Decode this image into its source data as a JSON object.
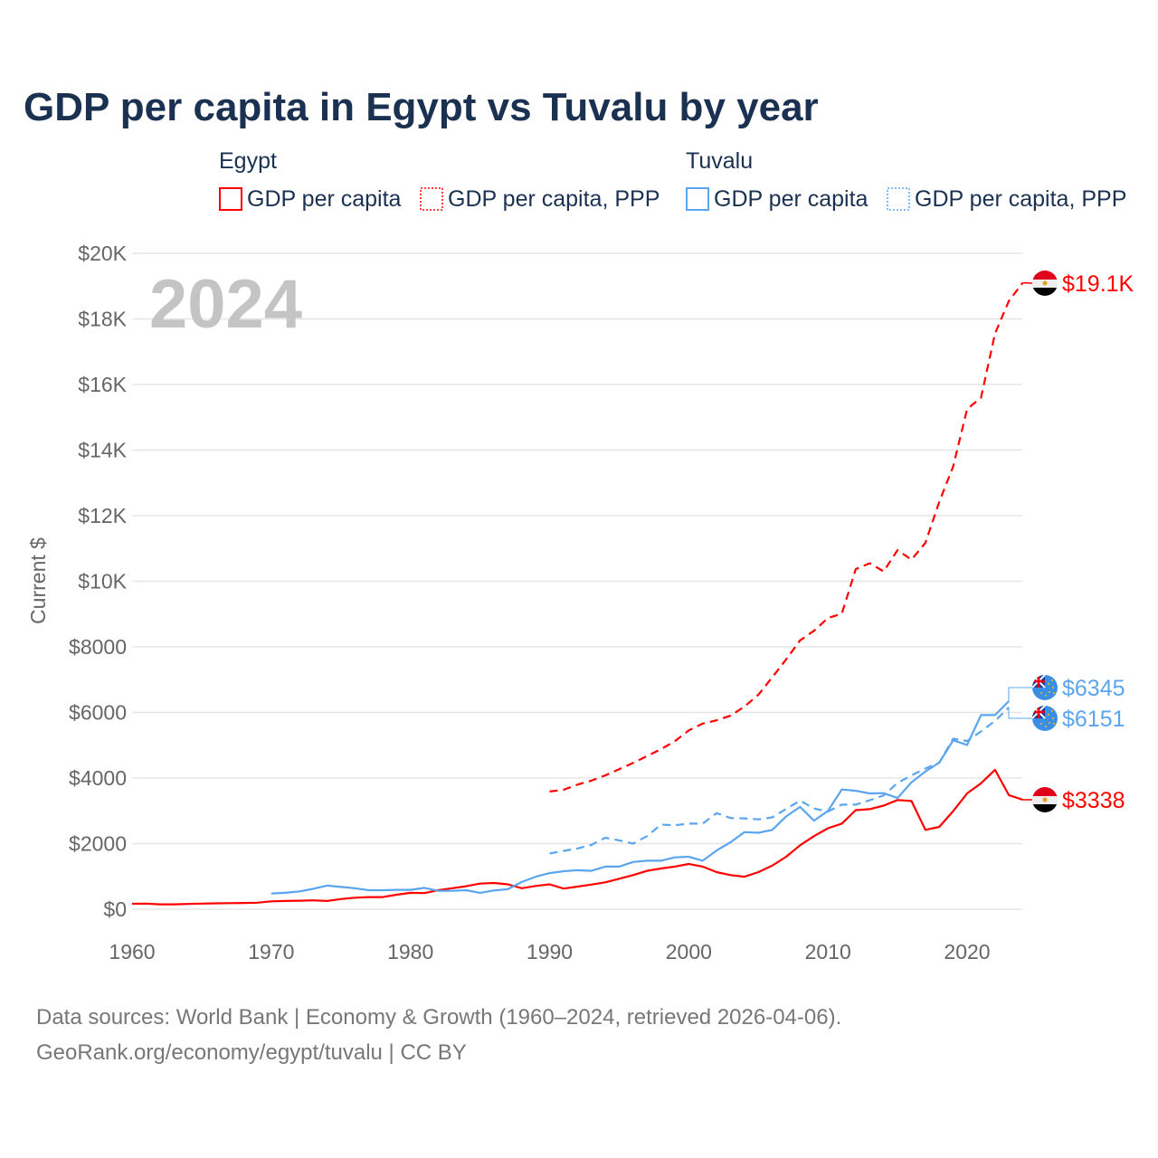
{
  "chart_data": {
    "type": "line",
    "title": "GDP per capita in Egypt vs Tuvalu by year",
    "xlabel": "",
    "ylabel": "Current $",
    "xlim": [
      1960,
      2024
    ],
    "ylim": [
      0,
      20000
    ],
    "x_ticks": [
      1960,
      1970,
      1980,
      1990,
      2000,
      2010,
      2020
    ],
    "x_tick_labels": [
      "1960",
      "1970",
      "1980",
      "1990",
      "2000",
      "2010",
      "2020"
    ],
    "y_ticks": [
      0,
      2000,
      4000,
      6000,
      8000,
      10000,
      12000,
      14000,
      16000,
      18000,
      20000
    ],
    "y_tick_labels": [
      "$0",
      "$2000",
      "$4000",
      "$6000",
      "$8000",
      "$10K",
      "$12K",
      "$14K",
      "$16K",
      "$18K",
      "$20K"
    ],
    "grid": true,
    "current_year_label": "2024",
    "legend_placement": "top",
    "legend_groups": [
      {
        "name": "Egypt",
        "items": [
          "GDP per capita",
          "GDP per capita, PPP"
        ]
      },
      {
        "name": "Tuvalu",
        "items": [
          "GDP per capita",
          "GDP per capita, PPP"
        ]
      }
    ],
    "series": [
      {
        "name": "Egypt GDP per capita",
        "country": "Egypt",
        "color": "#ff0000",
        "dash": false,
        "start": 1960,
        "end_label": "$3338",
        "values": [
          165,
          170,
          150,
          150,
          160,
          170,
          180,
          185,
          190,
          200,
          240,
          250,
          260,
          270,
          250,
          310,
          350,
          370,
          370,
          440,
          500,
          490,
          580,
          640,
          700,
          780,
          800,
          760,
          640,
          710,
          760,
          630,
          690,
          750,
          820,
          930,
          1040,
          1170,
          1240,
          1300,
          1380,
          1300,
          1130,
          1040,
          990,
          1130,
          1330,
          1600,
          1950,
          2230,
          2470,
          2610,
          3020,
          3050,
          3160,
          3330,
          3300,
          2420,
          2510,
          2990,
          3530,
          3840,
          4250,
          3480,
          3338
        ]
      },
      {
        "name": "Egypt GDP per capita, PPP",
        "country": "Egypt",
        "color": "#ff0000",
        "dash": true,
        "start": 1990,
        "end_label": "$19.1K",
        "values": [
          3590,
          3640,
          3800,
          3920,
          4080,
          4270,
          4460,
          4670,
          4880,
          5120,
          5450,
          5660,
          5760,
          5900,
          6180,
          6540,
          7070,
          7620,
          8200,
          8490,
          8880,
          9010,
          10370,
          10550,
          10300,
          10950,
          10660,
          11170,
          12420,
          13500,
          15250,
          15600,
          17550,
          18550,
          19100
        ]
      },
      {
        "name": "Tuvalu GDP per capita",
        "country": "Tuvalu",
        "color": "#5aa5ee",
        "dash": false,
        "start": 1970,
        "end_label": "$6345",
        "values": [
          480,
          500,
          540,
          620,
          720,
          680,
          640,
          580,
          580,
          590,
          590,
          650,
          560,
          560,
          580,
          500,
          570,
          610,
          830,
          990,
          1100,
          1160,
          1190,
          1170,
          1300,
          1300,
          1440,
          1480,
          1480,
          1580,
          1600,
          1480,
          1790,
          2040,
          2350,
          2330,
          2420,
          2830,
          3120,
          2700,
          3000,
          3650,
          3610,
          3530,
          3540,
          3390,
          3870,
          4200,
          4470,
          5150,
          5010,
          5920,
          5920,
          6345
        ]
      },
      {
        "name": "Tuvalu GDP per capita, PPP",
        "country": "Tuvalu",
        "color": "#5aa5ee",
        "dash": true,
        "start": 1990,
        "end_label": "$6151",
        "values": [
          1700,
          1780,
          1850,
          1960,
          2180,
          2100,
          2000,
          2230,
          2580,
          2560,
          2610,
          2610,
          2930,
          2780,
          2770,
          2740,
          2800,
          3060,
          3310,
          3070,
          2980,
          3190,
          3190,
          3320,
          3470,
          3850,
          4080,
          4290,
          4470,
          5200,
          5130,
          5420,
          5740,
          6151
        ]
      }
    ]
  },
  "footer": {
    "line1": "Data sources: World Bank | Economy & Growth (1960–2024, retrieved 2026-04-06).",
    "line2": "GeoRank.org/economy/egypt/tuvalu | CC BY"
  }
}
